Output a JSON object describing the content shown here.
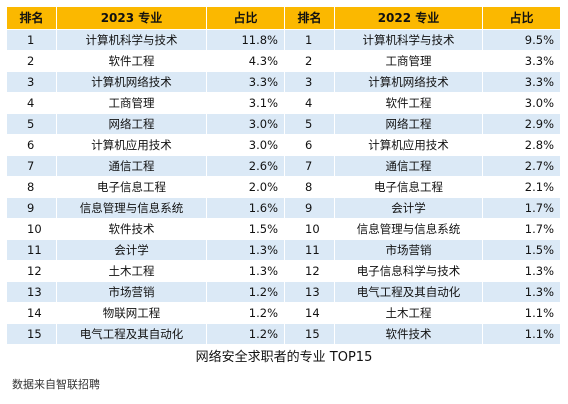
{
  "headers": {
    "rank_2023": "排名",
    "major_2023": "2023 专业",
    "share_2023": "占比",
    "rank_2022": "排名",
    "major_2022": "2022 专业",
    "share_2022": "占比"
  },
  "rows": [
    {
      "rank_2023": "1",
      "major_2023": "计算机科学与技术",
      "share_2023": "11.8%",
      "rank_2022": "1",
      "major_2022": "计算机科学与技术",
      "share_2022": "9.5%"
    },
    {
      "rank_2023": "2",
      "major_2023": "软件工程",
      "share_2023": "4.3%",
      "rank_2022": "2",
      "major_2022": "工商管理",
      "share_2022": "3.3%"
    },
    {
      "rank_2023": "3",
      "major_2023": "计算机网络技术",
      "share_2023": "3.3%",
      "rank_2022": "3",
      "major_2022": "计算机网络技术",
      "share_2022": "3.3%"
    },
    {
      "rank_2023": "4",
      "major_2023": "工商管理",
      "share_2023": "3.1%",
      "rank_2022": "4",
      "major_2022": "软件工程",
      "share_2022": "3.0%"
    },
    {
      "rank_2023": "5",
      "major_2023": "网络工程",
      "share_2023": "3.0%",
      "rank_2022": "5",
      "major_2022": "网络工程",
      "share_2022": "2.9%"
    },
    {
      "rank_2023": "6",
      "major_2023": "计算机应用技术",
      "share_2023": "3.0%",
      "rank_2022": "6",
      "major_2022": "计算机应用技术",
      "share_2022": "2.8%"
    },
    {
      "rank_2023": "7",
      "major_2023": "通信工程",
      "share_2023": "2.6%",
      "rank_2022": "7",
      "major_2022": "通信工程",
      "share_2022": "2.7%"
    },
    {
      "rank_2023": "8",
      "major_2023": "电子信息工程",
      "share_2023": "2.0%",
      "rank_2022": "8",
      "major_2022": "电子信息工程",
      "share_2022": "2.1%"
    },
    {
      "rank_2023": "9",
      "major_2023": "信息管理与信息系统",
      "share_2023": "1.6%",
      "rank_2022": "9",
      "major_2022": "会计学",
      "share_2022": "1.7%"
    },
    {
      "rank_2023": "10",
      "major_2023": "软件技术",
      "share_2023": "1.5%",
      "rank_2022": "10",
      "major_2022": "信息管理与信息系统",
      "share_2022": "1.7%"
    },
    {
      "rank_2023": "11",
      "major_2023": "会计学",
      "share_2023": "1.3%",
      "rank_2022": "11",
      "major_2022": "市场营销",
      "share_2022": "1.5%"
    },
    {
      "rank_2023": "12",
      "major_2023": "土木工程",
      "share_2023": "1.3%",
      "rank_2022": "12",
      "major_2022": "电子信息科学与技术",
      "share_2022": "1.3%"
    },
    {
      "rank_2023": "13",
      "major_2023": "市场营销",
      "share_2023": "1.2%",
      "rank_2022": "13",
      "major_2022": "电气工程及其自动化",
      "share_2022": "1.3%"
    },
    {
      "rank_2023": "14",
      "major_2023": "物联网工程",
      "share_2023": "1.2%",
      "rank_2022": "14",
      "major_2022": "土木工程",
      "share_2022": "1.1%"
    },
    {
      "rank_2023": "15",
      "major_2023": "电气工程及其自动化",
      "share_2023": "1.2%",
      "rank_2022": "15",
      "major_2022": "软件技术",
      "share_2022": "1.1%"
    }
  ],
  "caption": "网络安全求职者的专业 TOP15",
  "source": "数据来自智联招聘",
  "colors": {
    "header_bg": "#fbb800",
    "stripe_bg": "#dbe9f6",
    "row_bg": "#ffffff"
  }
}
